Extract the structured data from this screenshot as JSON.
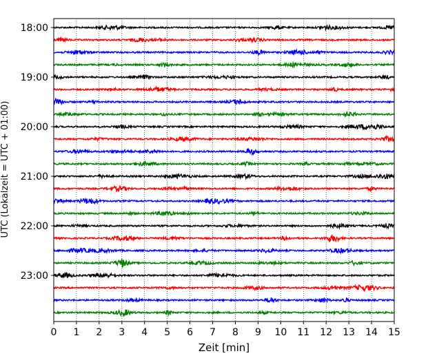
{
  "chart_data": {
    "type": "line",
    "title": "",
    "xlabel": "Zeit  [min]",
    "ylabel": "UTC (Lokalzeit = UTC + 01:00)",
    "xlim": [
      0,
      15
    ],
    "x_ticks": [
      "0",
      "1",
      "2",
      "3",
      "4",
      "5",
      "6",
      "7",
      "8",
      "9",
      "10",
      "11",
      "12",
      "13",
      "14",
      "15"
    ],
    "y_ticks": [
      "18:00",
      "19:00",
      "20:00",
      "21:00",
      "22:00",
      "23:00"
    ],
    "grid": "vertical dotted at each minute",
    "trace_interval_minutes": 15,
    "traces": [
      {
        "start": "18:00",
        "color": "#000000"
      },
      {
        "start": "18:15",
        "color": "#ff0000"
      },
      {
        "start": "18:30",
        "color": "#0000ff"
      },
      {
        "start": "18:45",
        "color": "#008000"
      },
      {
        "start": "19:00",
        "color": "#000000"
      },
      {
        "start": "19:15",
        "color": "#ff0000"
      },
      {
        "start": "19:30",
        "color": "#0000ff"
      },
      {
        "start": "19:45",
        "color": "#008000"
      },
      {
        "start": "20:00",
        "color": "#000000"
      },
      {
        "start": "20:15",
        "color": "#ff0000"
      },
      {
        "start": "20:30",
        "color": "#0000ff"
      },
      {
        "start": "20:45",
        "color": "#008000"
      },
      {
        "start": "21:00",
        "color": "#000000"
      },
      {
        "start": "21:15",
        "color": "#ff0000"
      },
      {
        "start": "21:30",
        "color": "#0000ff"
      },
      {
        "start": "21:45",
        "color": "#008000"
      },
      {
        "start": "22:00",
        "color": "#000000"
      },
      {
        "start": "22:15",
        "color": "#ff0000"
      },
      {
        "start": "22:30",
        "color": "#0000ff"
      },
      {
        "start": "22:45",
        "color": "#008000"
      },
      {
        "start": "23:00",
        "color": "#000000"
      },
      {
        "start": "23:15",
        "color": "#ff0000"
      },
      {
        "start": "23:30",
        "color": "#0000ff"
      },
      {
        "start": "23:45",
        "color": "#008000"
      }
    ]
  }
}
